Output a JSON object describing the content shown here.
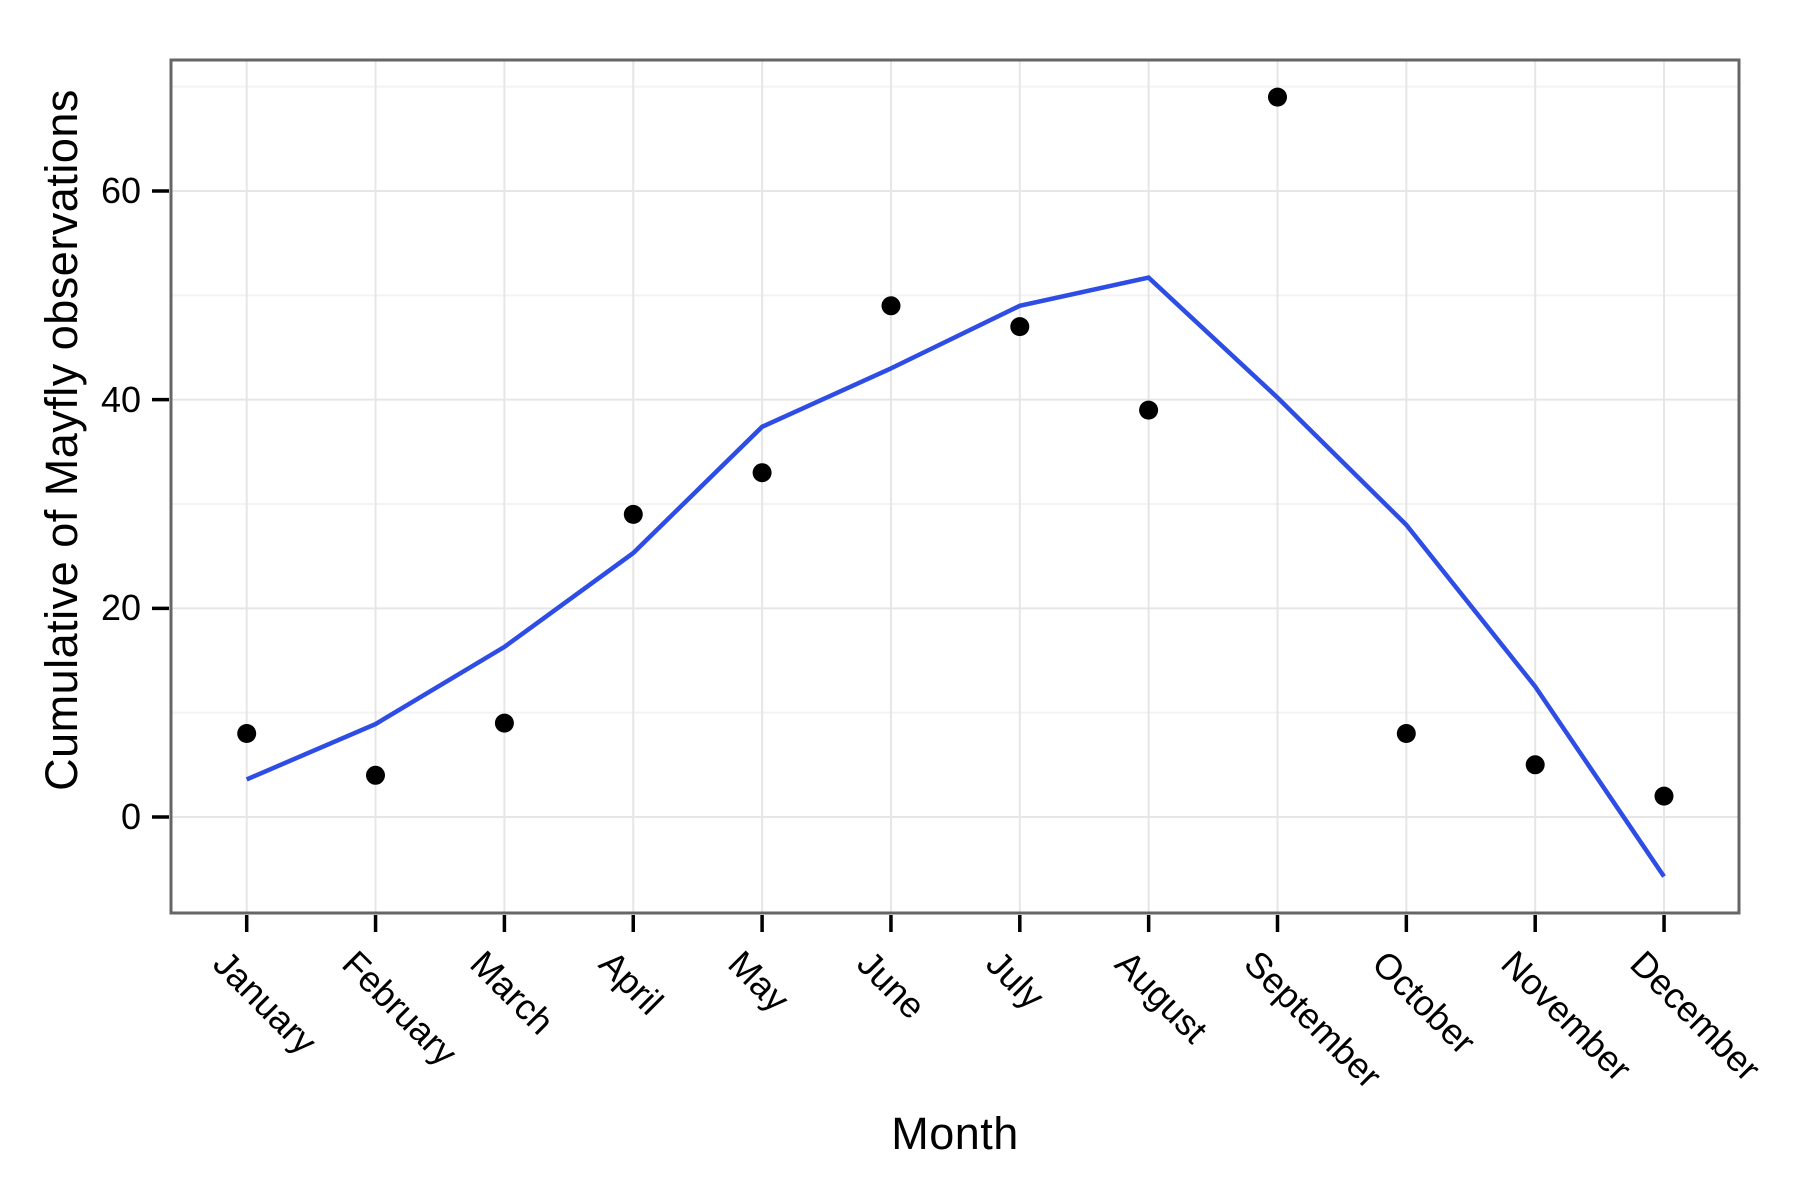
{
  "chart_data": {
    "type": "scatter",
    "title": "",
    "xlabel": "Month",
    "ylabel": "Cumulative of Mayfly observations",
    "categories": [
      "January",
      "February",
      "March",
      "April",
      "May",
      "June",
      "July",
      "August",
      "September",
      "October",
      "November",
      "December"
    ],
    "y_ticks": [
      0,
      20,
      40,
      60
    ],
    "y_minor_gridlines": [
      10,
      30,
      50,
      70
    ],
    "ylim": [
      -9.2,
      72.6
    ],
    "grid": "on",
    "legend_position": "none",
    "series": [
      {
        "name": "mayfly-observations-points",
        "type": "scatter",
        "color": "#000000",
        "values": [
          8,
          4,
          9,
          29,
          33,
          49,
          47,
          39,
          69,
          8,
          5,
          2
        ]
      },
      {
        "name": "smooth-fit-line",
        "type": "line",
        "color": "#2E4DE4",
        "values": [
          3.6,
          8.9,
          16.3,
          25.3,
          37.4,
          43,
          49,
          51.7,
          40.2,
          28,
          12.5,
          -5.7
        ]
      }
    ]
  },
  "styles": {
    "background": "#ffffff",
    "panel_border_color": "#666666",
    "major_grid_color": "#e6e6e6",
    "minor_grid_color": "#f3f3f3",
    "tick_mark_color": "#000000",
    "text_color": "#000000"
  }
}
